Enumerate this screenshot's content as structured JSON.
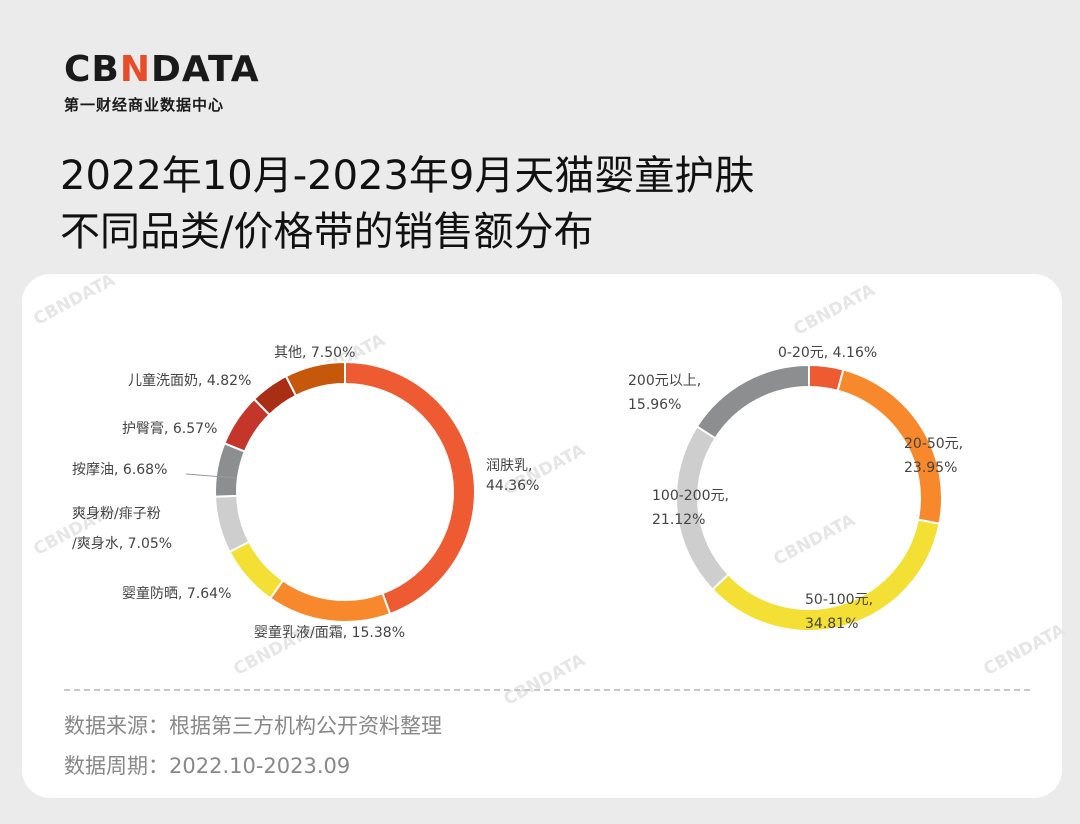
{
  "logo": {
    "prefix": "CB",
    "middle": "N",
    "suffix": "DATA",
    "subtitle": "第一财经商业数据中心",
    "accent_color": "#e84d2a"
  },
  "title": {
    "line1": "2022年10月-2023年9月天猫婴童护肤",
    "line2": "不同品类/价格带的销售额分布"
  },
  "footer": {
    "source": "数据来源：根据第三方机构公开资料整理",
    "period": "数据周期：2022.10-2023.09"
  },
  "watermark": "CBNDATA",
  "chart_data": [
    {
      "type": "pie",
      "variant": "donut",
      "title": "",
      "slices": [
        {
          "label": "润肤乳",
          "value": 44.36,
          "display": "润肤乳,|44.36%",
          "color": "#ee5a32"
        },
        {
          "label": "婴童乳液/面霜",
          "value": 15.38,
          "display": "婴童乳液/面霜, 15.38%",
          "color": "#f7892c"
        },
        {
          "label": "婴童防晒",
          "value": 7.64,
          "display": "婴童防晒, 7.64%",
          "color": "#f4df34"
        },
        {
          "label": "爽身粉/痱子粉/爽身水",
          "value": 7.05,
          "display": "爽身粉/痱子粉|/爽身水, 7.05%",
          "color": "#cdcecd"
        },
        {
          "label": "按摩油",
          "value": 6.68,
          "display": "按摩油, 6.68%",
          "color": "#8d8e8f"
        },
        {
          "label": "护臀膏",
          "value": 6.57,
          "display": "护臀膏, 6.57%",
          "color": "#c5362a"
        },
        {
          "label": "儿童洗面奶",
          "value": 4.82,
          "display": "儿童洗面奶, 4.82%",
          "color": "#a82f14"
        },
        {
          "label": "其他",
          "value": 7.5,
          "display": "其他, 7.50%",
          "color": "#c5580b"
        }
      ]
    },
    {
      "type": "pie",
      "variant": "donut",
      "title": "",
      "slices": [
        {
          "label": "0-20元",
          "value": 4.16,
          "display": "0-20元, 4.16%",
          "color": "#ee5a32"
        },
        {
          "label": "20-50元",
          "value": 23.95,
          "display": "20-50元,|23.95%",
          "color": "#f7892c"
        },
        {
          "label": "50-100元",
          "value": 34.81,
          "display": "50-100元,|34.81%",
          "color": "#f4df34"
        },
        {
          "label": "100-200元",
          "value": 21.12,
          "display": "100-200元,|21.12%",
          "color": "#cdcecd"
        },
        {
          "label": "200元以上",
          "value": 15.96,
          "display": "200元以上,|15.96%",
          "color": "#8d8e8f"
        }
      ]
    }
  ]
}
